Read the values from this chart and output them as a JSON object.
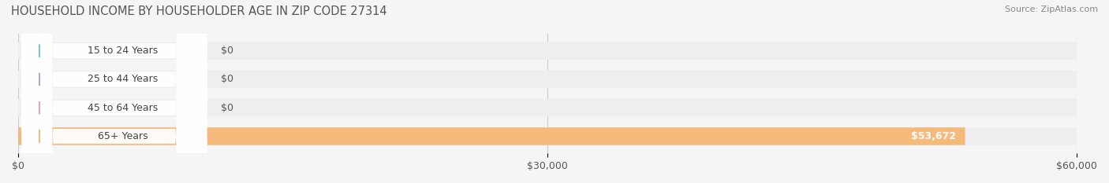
{
  "title": "HOUSEHOLD INCOME BY HOUSEHOLDER AGE IN ZIP CODE 27314",
  "source": "Source: ZipAtlas.com",
  "categories": [
    "15 to 24 Years",
    "25 to 44 Years",
    "45 to 64 Years",
    "65+ Years"
  ],
  "values": [
    0,
    0,
    0,
    53672
  ],
  "bar_colors": [
    "#6dcdc8",
    "#a9a9d4",
    "#f2a0b8",
    "#f5b97a"
  ],
  "xlim": [
    0,
    60000
  ],
  "xticks": [
    0,
    30000,
    60000
  ],
  "xtick_labels": [
    "$0",
    "$30,000",
    "$60,000"
  ],
  "background_color": "#f5f5f5",
  "bar_background_color": "#eeeeee",
  "value_label_53672": "$53,672"
}
